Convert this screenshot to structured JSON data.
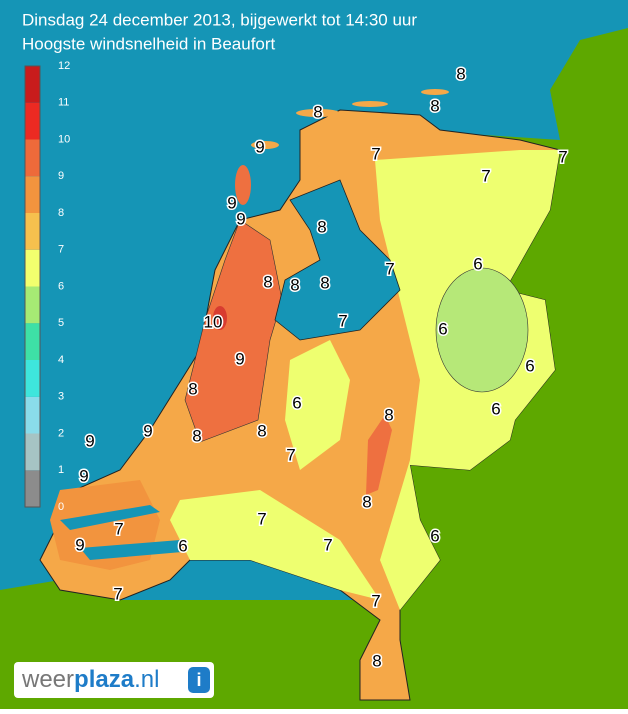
{
  "header": {
    "title": "Dinsdag 24 december 2013, bijgewerkt tot 14:30 uur",
    "subtitle": "Hoogste windsnelheid in Beaufort"
  },
  "legend": {
    "ticks": [
      0,
      1,
      2,
      3,
      4,
      5,
      6,
      7,
      8,
      9,
      10,
      11,
      12
    ],
    "colors": [
      "#8c8c8c",
      "#a6c4c4",
      "#8adcea",
      "#3ee6dc",
      "#3ee0a6",
      "#a6ea74",
      "#f2ff6e",
      "#f6c04e",
      "#f2943e",
      "#ee6a3a",
      "#ec2a22",
      "#c81c1c"
    ]
  },
  "map_labels": [
    "8",
    "8",
    "8",
    "7",
    "7",
    "7",
    "9",
    "9",
    "9",
    "8",
    "7",
    "6",
    "8",
    "8",
    "8",
    "10",
    "7",
    "6",
    "9",
    "6",
    "8",
    "6",
    "6",
    "8",
    "8",
    "8",
    "9",
    "9",
    "9",
    "7",
    "8",
    "7",
    "7",
    "6",
    "9",
    "6",
    "7",
    "7",
    "7",
    "8"
  ],
  "logo": {
    "parts": [
      "weer",
      "plaza",
      ".nl"
    ],
    "icon": "i"
  }
}
